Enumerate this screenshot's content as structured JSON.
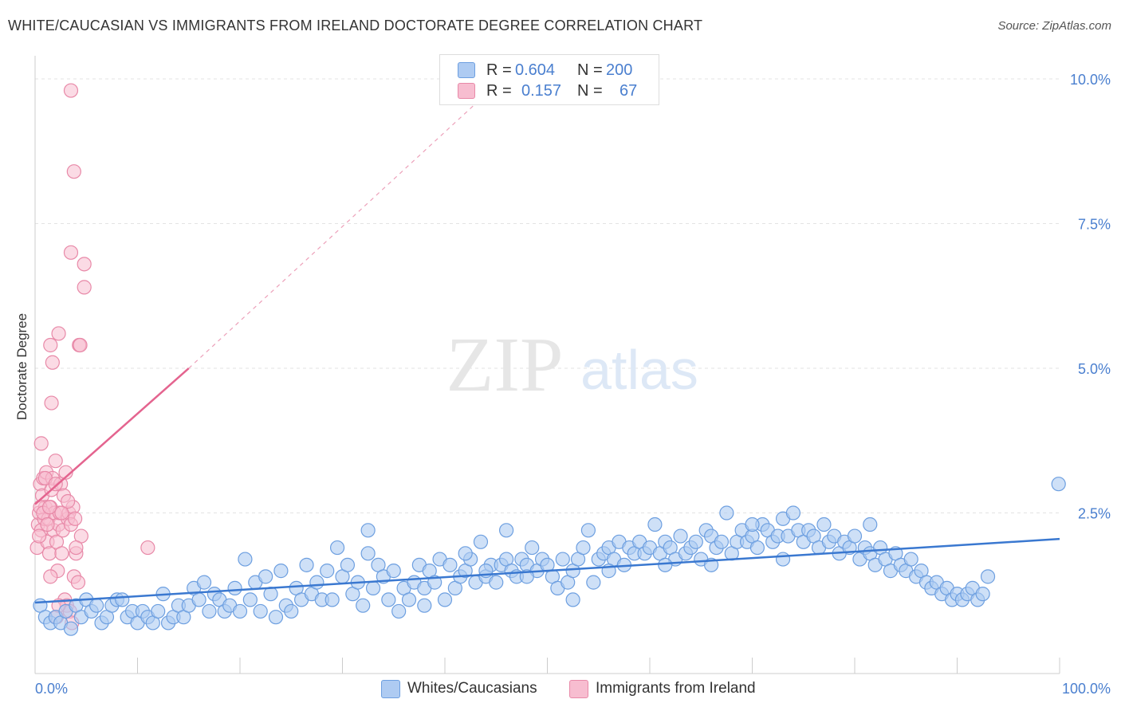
{
  "title": "WHITE/CAUCASIAN VS IMMIGRANTS FROM IRELAND DOCTORATE DEGREE CORRELATION CHART",
  "source": "Source: ZipAtlas.com",
  "watermark": {
    "zip": "ZIP",
    "atlas": "atlas"
  },
  "colors": {
    "blue_fill": "#aecbf2",
    "blue_stroke": "#6d9fe0",
    "blue_line": "#3a78d0",
    "pink_fill": "#f7bdd0",
    "pink_stroke": "#e889a8",
    "pink_line": "#e4648f",
    "axis_text_blue": "#4a7fcf",
    "grid": "#e3e3e3"
  },
  "legend": {
    "rows": [
      {
        "r_label": "R =",
        "r_value": "0.604",
        "n_label": "N =",
        "n_value": "200"
      },
      {
        "r_label": "R =",
        "r_value": "0.157",
        "n_label": "N =",
        "n_value": "67"
      }
    ]
  },
  "bottom_legend": {
    "items": [
      {
        "label": "Whites/Caucasians"
      },
      {
        "label": "Immigrants from Ireland"
      }
    ]
  },
  "chart_data": {
    "type": "scatter",
    "title": "WHITE/CAUCASIAN VS IMMIGRANTS FROM IRELAND DOCTORATE DEGREE CORRELATION CHART",
    "xlabel": "",
    "ylabel": "Doctorate Degree",
    "xlim": [
      0,
      100
    ],
    "ylim": [
      0,
      10.4
    ],
    "x_tick_labels": [
      "0.0%",
      "100.0%"
    ],
    "y_ticks": [
      2.5,
      5.0,
      7.5,
      10.0
    ],
    "y_tick_labels": [
      "2.5%",
      "5.0%",
      "7.5%",
      "10.0%"
    ],
    "grid": true,
    "legend_position": "top-center",
    "series": [
      {
        "name": "Whites/Caucasians",
        "color": "#aecbf2",
        "trend": {
          "x": [
            0,
            100
          ],
          "y": [
            0.95,
            2.05
          ],
          "style": "solid"
        },
        "points": [
          [
            0.5,
            0.9
          ],
          [
            1.0,
            0.7
          ],
          [
            1.5,
            0.6
          ],
          [
            2.0,
            0.7
          ],
          [
            2.5,
            0.6
          ],
          [
            3.0,
            0.8
          ],
          [
            3.5,
            0.5
          ],
          [
            4.0,
            0.9
          ],
          [
            4.5,
            0.7
          ],
          [
            5.0,
            1.0
          ],
          [
            5.5,
            0.8
          ],
          [
            6.0,
            0.9
          ],
          [
            6.5,
            0.6
          ],
          [
            7.0,
            0.7
          ],
          [
            7.5,
            0.9
          ],
          [
            8.0,
            1.0
          ],
          [
            8.5,
            1.0
          ],
          [
            9.0,
            0.7
          ],
          [
            9.5,
            0.8
          ],
          [
            10.0,
            0.6
          ],
          [
            10.5,
            0.8
          ],
          [
            11.0,
            0.7
          ],
          [
            11.5,
            0.6
          ],
          [
            12.0,
            0.8
          ],
          [
            12.5,
            1.1
          ],
          [
            13.0,
            0.6
          ],
          [
            13.5,
            0.7
          ],
          [
            14.0,
            0.9
          ],
          [
            14.5,
            0.7
          ],
          [
            15.0,
            0.9
          ],
          [
            15.5,
            1.2
          ],
          [
            16.0,
            1.0
          ],
          [
            16.5,
            1.3
          ],
          [
            17.0,
            0.8
          ],
          [
            17.5,
            1.1
          ],
          [
            18.0,
            1.0
          ],
          [
            18.5,
            0.8
          ],
          [
            19.0,
            0.9
          ],
          [
            19.5,
            1.2
          ],
          [
            20.0,
            0.8
          ],
          [
            20.5,
            1.7
          ],
          [
            21.0,
            1.0
          ],
          [
            21.5,
            1.3
          ],
          [
            22.0,
            0.8
          ],
          [
            22.5,
            1.4
          ],
          [
            23.0,
            1.1
          ],
          [
            23.5,
            0.7
          ],
          [
            24.0,
            1.5
          ],
          [
            24.5,
            0.9
          ],
          [
            25.0,
            0.8
          ],
          [
            25.5,
            1.2
          ],
          [
            26.0,
            1.0
          ],
          [
            26.5,
            1.6
          ],
          [
            27.0,
            1.1
          ],
          [
            27.5,
            1.3
          ],
          [
            28.0,
            1.0
          ],
          [
            28.5,
            1.5
          ],
          [
            29.0,
            1.0
          ],
          [
            29.5,
            1.9
          ],
          [
            30.0,
            1.4
          ],
          [
            30.5,
            1.6
          ],
          [
            31.0,
            1.1
          ],
          [
            31.5,
            1.3
          ],
          [
            32.0,
            0.9
          ],
          [
            32.5,
            1.8
          ],
          [
            33.0,
            1.2
          ],
          [
            33.5,
            1.6
          ],
          [
            34.0,
            1.4
          ],
          [
            34.5,
            1.0
          ],
          [
            35.0,
            1.5
          ],
          [
            35.5,
            0.8
          ],
          [
            36.0,
            1.2
          ],
          [
            36.5,
            1.0
          ],
          [
            37.0,
            1.3
          ],
          [
            37.5,
            1.6
          ],
          [
            38.0,
            1.2
          ],
          [
            38.5,
            1.5
          ],
          [
            39.0,
            1.3
          ],
          [
            39.5,
            1.7
          ],
          [
            40.0,
            1.0
          ],
          [
            40.5,
            1.6
          ],
          [
            41.0,
            1.2
          ],
          [
            41.5,
            1.4
          ],
          [
            42.0,
            1.5
          ],
          [
            42.5,
            1.7
          ],
          [
            43.0,
            1.3
          ],
          [
            43.5,
            2.0
          ],
          [
            44.0,
            1.4
          ],
          [
            44.5,
            1.6
          ],
          [
            45.0,
            1.3
          ],
          [
            45.5,
            1.6
          ],
          [
            46.0,
            1.7
          ],
          [
            46.5,
            1.5
          ],
          [
            47.0,
            1.4
          ],
          [
            47.5,
            1.7
          ],
          [
            48.0,
            1.6
          ],
          [
            48.5,
            1.9
          ],
          [
            49.0,
            1.5
          ],
          [
            49.5,
            1.7
          ],
          [
            50.0,
            1.6
          ],
          [
            50.5,
            1.4
          ],
          [
            51.0,
            1.2
          ],
          [
            51.5,
            1.7
          ],
          [
            52.0,
            1.3
          ],
          [
            52.5,
            1.5
          ],
          [
            53.0,
            1.7
          ],
          [
            53.5,
            1.9
          ],
          [
            54.0,
            2.2
          ],
          [
            54.5,
            1.3
          ],
          [
            55.0,
            1.7
          ],
          [
            55.5,
            1.8
          ],
          [
            56.0,
            1.9
          ],
          [
            56.5,
            1.7
          ],
          [
            57.0,
            2.0
          ],
          [
            57.5,
            1.6
          ],
          [
            58.0,
            1.9
          ],
          [
            58.5,
            1.8
          ],
          [
            59.0,
            2.0
          ],
          [
            59.5,
            1.8
          ],
          [
            60.0,
            1.9
          ],
          [
            60.5,
            2.3
          ],
          [
            61.0,
            1.8
          ],
          [
            61.5,
            2.0
          ],
          [
            62.0,
            1.9
          ],
          [
            62.5,
            1.7
          ],
          [
            63.0,
            2.1
          ],
          [
            63.5,
            1.8
          ],
          [
            64.0,
            1.9
          ],
          [
            64.5,
            2.0
          ],
          [
            65.0,
            1.7
          ],
          [
            65.5,
            2.2
          ],
          [
            66.0,
            2.1
          ],
          [
            66.5,
            1.9
          ],
          [
            67.0,
            2.0
          ],
          [
            67.5,
            2.5
          ],
          [
            68.0,
            1.8
          ],
          [
            68.5,
            2.0
          ],
          [
            69.0,
            2.2
          ],
          [
            69.5,
            2.0
          ],
          [
            70.0,
            2.1
          ],
          [
            70.5,
            1.9
          ],
          [
            71.0,
            2.3
          ],
          [
            71.5,
            2.2
          ],
          [
            72.0,
            2.0
          ],
          [
            72.5,
            2.1
          ],
          [
            73.0,
            2.4
          ],
          [
            73.5,
            2.1
          ],
          [
            74.0,
            2.5
          ],
          [
            74.5,
            2.2
          ],
          [
            75.0,
            2.0
          ],
          [
            75.5,
            2.2
          ],
          [
            76.0,
            2.1
          ],
          [
            76.5,
            1.9
          ],
          [
            77.0,
            2.3
          ],
          [
            77.5,
            2.0
          ],
          [
            78.0,
            2.1
          ],
          [
            78.5,
            1.8
          ],
          [
            79.0,
            2.0
          ],
          [
            79.5,
            1.9
          ],
          [
            80.0,
            2.1
          ],
          [
            80.5,
            1.7
          ],
          [
            81.0,
            1.9
          ],
          [
            81.5,
            1.8
          ],
          [
            82.0,
            1.6
          ],
          [
            82.5,
            1.9
          ],
          [
            83.0,
            1.7
          ],
          [
            83.5,
            1.5
          ],
          [
            84.0,
            1.8
          ],
          [
            84.5,
            1.6
          ],
          [
            85.0,
            1.5
          ],
          [
            85.5,
            1.7
          ],
          [
            86.0,
            1.4
          ],
          [
            86.5,
            1.5
          ],
          [
            87.0,
            1.3
          ],
          [
            87.5,
            1.2
          ],
          [
            88.0,
            1.3
          ],
          [
            88.5,
            1.1
          ],
          [
            89.0,
            1.2
          ],
          [
            89.5,
            1.0
          ],
          [
            90.0,
            1.1
          ],
          [
            90.5,
            1.0
          ],
          [
            91.0,
            1.1
          ],
          [
            91.5,
            1.2
          ],
          [
            92.0,
            1.0
          ],
          [
            92.5,
            1.1
          ],
          [
            93.0,
            1.4
          ],
          [
            99.9,
            3.0
          ],
          [
            61.5,
            1.6
          ],
          [
            56.0,
            1.5
          ],
          [
            48.0,
            1.4
          ],
          [
            52.5,
            1.0
          ],
          [
            46.0,
            2.2
          ],
          [
            32.5,
            2.2
          ],
          [
            42.0,
            1.8
          ],
          [
            38.0,
            0.9
          ],
          [
            44.0,
            1.5
          ],
          [
            66.0,
            1.6
          ],
          [
            73.0,
            1.7
          ],
          [
            81.5,
            2.3
          ],
          [
            70.0,
            2.3
          ]
        ]
      },
      {
        "name": "Immigrants from Ireland",
        "color": "#f7bdd0",
        "trend": {
          "x": [
            0,
            15,
            45
          ],
          "y": [
            2.65,
            5.0,
            9.9
          ],
          "style": "solid-then-dashed"
        },
        "points": [
          [
            0.2,
            1.9
          ],
          [
            0.3,
            2.3
          ],
          [
            0.4,
            2.5
          ],
          [
            0.5,
            3.0
          ],
          [
            0.6,
            2.2
          ],
          [
            0.7,
            2.8
          ],
          [
            0.8,
            3.1
          ],
          [
            0.9,
            2.4
          ],
          [
            1.0,
            2.6
          ],
          [
            1.1,
            3.2
          ],
          [
            1.2,
            2.0
          ],
          [
            1.3,
            2.4
          ],
          [
            1.4,
            1.8
          ],
          [
            1.5,
            2.6
          ],
          [
            1.6,
            2.9
          ],
          [
            1.7,
            3.1
          ],
          [
            1.8,
            2.2
          ],
          [
            1.9,
            2.5
          ],
          [
            2.0,
            3.4
          ],
          [
            2.1,
            2.0
          ],
          [
            2.2,
            1.5
          ],
          [
            2.3,
            2.3
          ],
          [
            2.4,
            2.5
          ],
          [
            2.5,
            3.0
          ],
          [
            2.6,
            1.8
          ],
          [
            2.7,
            2.2
          ],
          [
            2.8,
            2.8
          ],
          [
            2.9,
            1.0
          ],
          [
            3.0,
            3.2
          ],
          [
            3.1,
            0.9
          ],
          [
            3.2,
            2.4
          ],
          [
            3.3,
            2.5
          ],
          [
            3.4,
            0.8
          ],
          [
            3.5,
            2.3
          ],
          [
            3.6,
            0.6
          ],
          [
            3.7,
            2.6
          ],
          [
            3.8,
            1.4
          ],
          [
            3.9,
            2.4
          ],
          [
            4.0,
            1.8
          ],
          [
            4.2,
            1.3
          ],
          [
            4.5,
            2.1
          ],
          [
            1.5,
            5.4
          ],
          [
            1.7,
            5.1
          ],
          [
            1.6,
            4.4
          ],
          [
            2.3,
            5.6
          ],
          [
            3.5,
            9.8
          ],
          [
            3.8,
            8.4
          ],
          [
            3.5,
            7.0
          ],
          [
            4.8,
            6.8
          ],
          [
            4.8,
            6.4
          ],
          [
            4.3,
            5.4
          ],
          [
            4.4,
            5.4
          ],
          [
            0.6,
            3.7
          ],
          [
            2.1,
            0.7
          ],
          [
            1.5,
            1.4
          ],
          [
            2.3,
            0.9
          ],
          [
            0.5,
            2.6
          ],
          [
            0.8,
            2.5
          ],
          [
            1.0,
            3.1
          ],
          [
            1.2,
            2.3
          ],
          [
            1.4,
            2.6
          ],
          [
            2.0,
            3.0
          ],
          [
            2.6,
            2.5
          ],
          [
            3.2,
            2.7
          ],
          [
            4.0,
            1.9
          ],
          [
            0.4,
            2.1
          ],
          [
            11.0,
            1.9
          ]
        ]
      }
    ]
  }
}
